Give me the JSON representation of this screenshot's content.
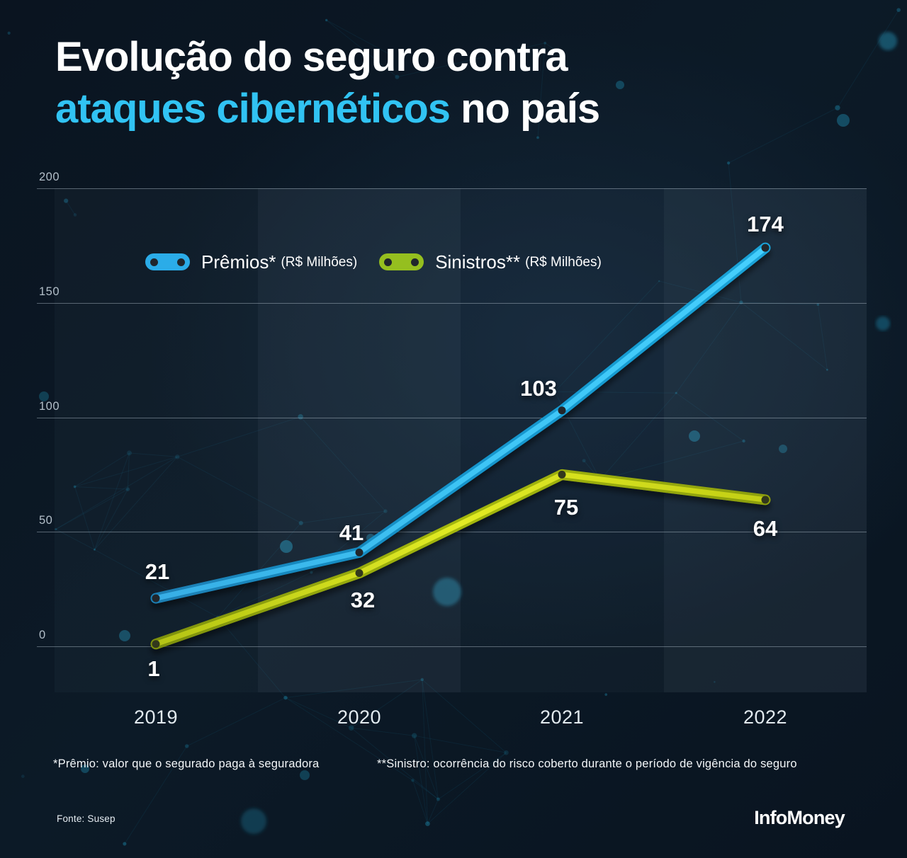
{
  "title": {
    "line1": "Evolução do seguro contra",
    "line2_accent": "ataques cibernéticos",
    "line2_rest": " no país"
  },
  "legend": [
    {
      "label": "Prêmios*",
      "unit": "(R$ Milhões)",
      "color": "#2BACE8"
    },
    {
      "label": "Sinistros**",
      "unit": "(R$ Milhões)",
      "color": "#95BF1F"
    }
  ],
  "chart_data": {
    "type": "line",
    "categories": [
      "2019",
      "2020",
      "2021",
      "2022"
    ],
    "series": [
      {
        "name": "Prêmios* (R$ Milhões)",
        "key": "premios",
        "color": "#2BACE8",
        "values": [
          21,
          41,
          103,
          174
        ]
      },
      {
        "name": "Sinistros** (R$ Milhões)",
        "key": "sinistros",
        "color": "#95BF1F",
        "values": [
          1,
          32,
          75,
          64
        ]
      }
    ],
    "title": "Evolução do seguro contra ataques cibernéticos no país",
    "xlabel": "",
    "ylabel": "",
    "ylim": [
      0,
      200
    ],
    "yticks": [
      200,
      150,
      100,
      50,
      0
    ],
    "grid": "horizontal",
    "legend_position": "top-inside"
  },
  "footnotes": {
    "premio": "*Prêmio: valor que o segurado paga à seguradora",
    "sinistro": "**Sinistro: ocorrência do risco coberto durante o período de vigência do seguro"
  },
  "source": "Fonte: Susep",
  "brand": "InfoMoney",
  "colors": {
    "background": "#0B1723",
    "accent_cyan": "#31C3F3",
    "line_blue": "#2BACE8",
    "line_green": "#C3D31A",
    "grid": "#BECDD8",
    "tick_text": "#B3BFC9",
    "axis_text": "#E2EAEF",
    "network": "#1E89AC"
  }
}
